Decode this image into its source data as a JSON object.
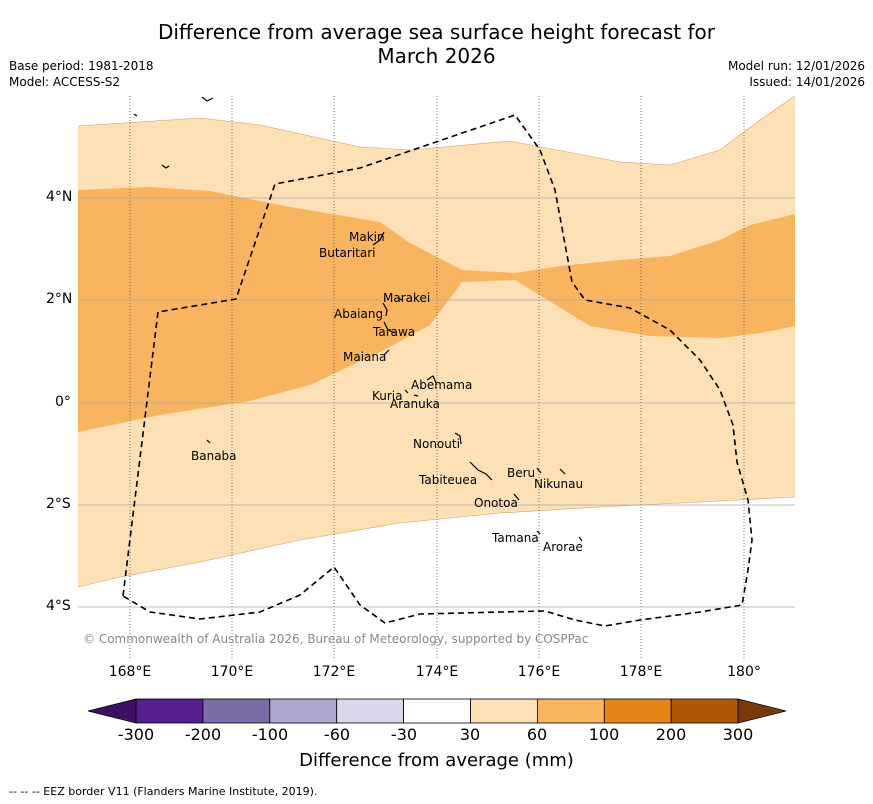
{
  "header": {
    "title_line1": "Difference from average sea surface height forecast for",
    "title_line2": "March 2026",
    "base_period": "Base period: 1981-2018",
    "model": "Model: ACCESS-S2",
    "model_run": "Model run: 12/01/2026",
    "issued": "Issued: 14/01/2026"
  },
  "axes": {
    "latitudes": [
      "4°N",
      "2°N",
      "0°",
      "2°S",
      "4°S"
    ],
    "longitudes": [
      "168°E",
      "170°E",
      "172°E",
      "174°E",
      "176°E",
      "178°E",
      "180°"
    ]
  },
  "places": {
    "makin": "Makin",
    "butaritari": "Butaritari",
    "marakei": "Marakei",
    "abaiang": "Abaiang",
    "tarawa": "Tarawa",
    "maiana": "Maiana",
    "abemama": "Abemama",
    "kuria": "Kuria",
    "aranuka": "Aranuka",
    "banaba": "Banaba",
    "nonouti": "Nonouti",
    "tabiteuea": "Tabiteuea",
    "beru": "Beru",
    "nikunau": "Nikunau",
    "onotoa": "Onotoa",
    "tamana": "Tamana",
    "arorae": "Arorae"
  },
  "copyright": "© Commonwealth of Australia 2026, Bureau of Meteorology, supported by COSPPac",
  "colorbar": {
    "ticks": [
      "-300",
      "-200",
      "-100",
      "-60",
      "-30",
      "30",
      "60",
      "100",
      "200",
      "300"
    ],
    "title": "Difference from average (mm)",
    "colors": [
      "#3f0f63",
      "#56208a",
      "#7c6ca8",
      "#aea7d0",
      "#d8d8ea",
      "#ffffff",
      "#fde0b6",
      "#f9b460",
      "#e38515",
      "#b05707",
      "#7a3a0b"
    ]
  },
  "footnote": "--  --  -- EEZ border V11 (Flanders Marine Institute, 2019)."
}
